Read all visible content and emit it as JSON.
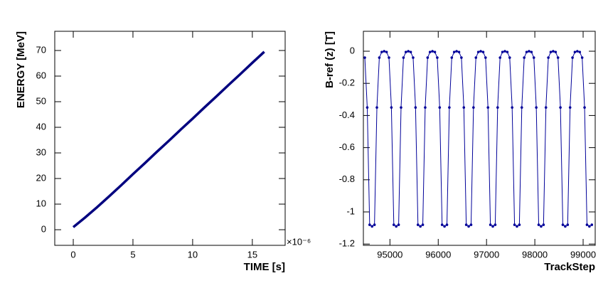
{
  "chart_data": [
    {
      "type": "line",
      "x_label": "TIME [s]",
      "y_label": "ENERGY [MeV]",
      "x_multiplier": "×10⁻⁶",
      "color": "#00007f",
      "line_width": 3.5,
      "markers": false,
      "x": [
        0,
        1,
        2,
        3,
        4,
        5,
        6,
        7,
        8,
        9,
        10,
        11,
        12,
        13,
        14,
        15,
        16
      ],
      "values": [
        1,
        4.8,
        8.8,
        13,
        17.3,
        21.7,
        26,
        30.4,
        34.7,
        39.1,
        43.4,
        47.8,
        52.1,
        56.5,
        60.8,
        65.2,
        69.5
      ],
      "xlim": [
        -1.55,
        17.75
      ],
      "xticks": [
        0,
        5,
        10,
        15
      ],
      "ylim": [
        -6.1,
        77.5
      ],
      "yticks": [
        0,
        10,
        20,
        30,
        40,
        50,
        60,
        70
      ]
    },
    {
      "type": "line",
      "x_label": "TrackStep",
      "y_label": "B-ref (z)  [T]",
      "color": "#000099",
      "line_width": 1,
      "markers": true,
      "x": [
        94480,
        94530,
        94580,
        94630,
        94680,
        94730,
        94780,
        94830,
        94880,
        94930,
        94980,
        95030,
        95080,
        95130,
        95180,
        95230,
        95280,
        95330,
        95380,
        95430,
        95480,
        95530,
        95580,
        95630,
        95680,
        95730,
        95780,
        95830,
        95880,
        95930,
        95980,
        96030,
        96080,
        96130,
        96180,
        96230,
        96280,
        96330,
        96380,
        96430,
        96480,
        96530,
        96580,
        96630,
        96680,
        96730,
        96780,
        96830,
        96880,
        96930,
        96980,
        97030,
        97080,
        97130,
        97180,
        97230,
        97280,
        97330,
        97380,
        97430,
        97480,
        97530,
        97580,
        97630,
        97680,
        97730,
        97780,
        97830,
        97880,
        97930,
        97980,
        98030,
        98080,
        98130,
        98180,
        98230,
        98280,
        98330,
        98380,
        98430,
        98480,
        98530,
        98580,
        98630,
        98680,
        98730,
        98780,
        98830,
        98880,
        98930,
        98980,
        99030,
        99080,
        99130,
        99180
      ],
      "values": [
        -0.04,
        -0.35,
        -1.08,
        -1.09,
        -1.08,
        -0.35,
        -0.04,
        -0.005,
        0,
        -0.005,
        -0.04,
        -0.35,
        -1.08,
        -1.09,
        -1.08,
        -0.35,
        -0.04,
        -0.005,
        0,
        -0.005,
        -0.04,
        -0.35,
        -1.08,
        -1.09,
        -1.08,
        -0.35,
        -0.04,
        -0.005,
        0,
        -0.005,
        -0.04,
        -0.35,
        -1.08,
        -1.09,
        -1.08,
        -0.35,
        -0.04,
        -0.005,
        0,
        -0.005,
        -0.04,
        -0.35,
        -1.08,
        -1.09,
        -1.08,
        -0.35,
        -0.04,
        -0.005,
        0,
        -0.005,
        -0.04,
        -0.35,
        -1.08,
        -1.09,
        -1.08,
        -0.35,
        -0.04,
        -0.005,
        0,
        -0.005,
        -0.04,
        -0.35,
        -1.08,
        -1.09,
        -1.08,
        -0.35,
        -0.04,
        -0.005,
        0,
        -0.005,
        -0.04,
        -0.35,
        -1.08,
        -1.09,
        -1.08,
        -0.35,
        -0.04,
        -0.005,
        0,
        -0.005,
        -0.04,
        -0.35,
        -1.08,
        -1.09,
        -1.08,
        -0.35,
        -0.04,
        -0.005,
        0,
        -0.005,
        -0.04,
        -0.35,
        -1.08,
        -1.09,
        -1.08
      ],
      "xlim": [
        94450,
        99250
      ],
      "xticks": [
        95000,
        96000,
        97000,
        98000,
        99000
      ],
      "ylim": [
        -1.208,
        0.124
      ],
      "yticks": [
        0,
        -0.2,
        -0.4,
        -0.6,
        -0.8,
        -1,
        -1.2
      ]
    }
  ]
}
